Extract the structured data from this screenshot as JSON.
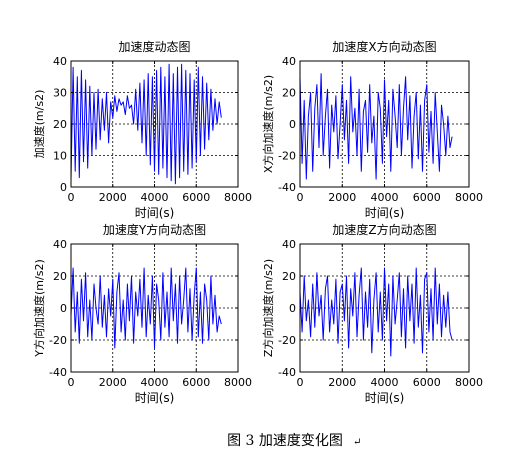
{
  "figure": {
    "caption": "图 3  加速度变化图",
    "caption_mark": "↵"
  },
  "colors": {
    "line": "#0000ff",
    "axes": "#000000",
    "grid": "#000000",
    "background": "#ffffff"
  },
  "chart_data": [
    {
      "type": "line",
      "title": "加速度动态图",
      "xlabel": "时间(s)",
      "ylabel": "加速度(m/s2)",
      "xlim": [
        0,
        8000
      ],
      "ylim": [
        0,
        40
      ],
      "xticks": [
        0,
        2000,
        4000,
        6000,
        8000
      ],
      "yticks": [
        0,
        10,
        20,
        30,
        40
      ],
      "grid": true,
      "series": [
        {
          "x": [
            0,
            100,
            200,
            300,
            400,
            500,
            600,
            700,
            800,
            900,
            1000,
            1100,
            1200,
            1300,
            1400,
            1500,
            1600,
            1700,
            1800,
            1900,
            2000,
            2100,
            2200,
            2300,
            2400,
            2500,
            2600,
            2700,
            2800,
            2900,
            3000,
            3100,
            3200,
            3300,
            3400,
            3500,
            3600,
            3700,
            3800,
            3900,
            4000,
            4100,
            4200,
            4300,
            4400,
            4500,
            4600,
            4700,
            4800,
            4900,
            5000,
            5100,
            5200,
            5300,
            5400,
            5500,
            5600,
            5700,
            5800,
            5900,
            6000,
            6100,
            6200,
            6300,
            6400,
            6500,
            6600,
            6700,
            6800,
            6900,
            7000,
            7100,
            7200
          ],
          "y": [
            2,
            38,
            5,
            35,
            3,
            37,
            8,
            34,
            6,
            32,
            10,
            30,
            12,
            31,
            15,
            28,
            18,
            30,
            14,
            27,
            22,
            29,
            24,
            28,
            26,
            27,
            23,
            29,
            25,
            26,
            20,
            31,
            18,
            33,
            14,
            34,
            10,
            36,
            7,
            35,
            5,
            37,
            4,
            38,
            6,
            35,
            3,
            39,
            2,
            36,
            1,
            38,
            3,
            39,
            5,
            37,
            4,
            36,
            6,
            34,
            8,
            38,
            10,
            35,
            12,
            33,
            15,
            31,
            18,
            28,
            20,
            27,
            22
          ]
        }
      ]
    },
    {
      "type": "line",
      "title": "加速度X方向动态图",
      "xlabel": "时间(s)",
      "ylabel": "X方向加速度(m/s2)",
      "xlim": [
        0,
        8000
      ],
      "ylim": [
        -40,
        40
      ],
      "xticks": [
        0,
        2000,
        4000,
        6000,
        8000
      ],
      "yticks": [
        -40,
        -20,
        0,
        20,
        40
      ],
      "grid": true,
      "series": [
        {
          "x": [
            0,
            100,
            200,
            300,
            400,
            500,
            600,
            700,
            800,
            900,
            1000,
            1100,
            1200,
            1300,
            1400,
            1500,
            1600,
            1700,
            1800,
            1900,
            2000,
            2100,
            2200,
            2300,
            2400,
            2500,
            2600,
            2700,
            2800,
            2900,
            3000,
            3100,
            3200,
            3300,
            3400,
            3500,
            3600,
            3700,
            3800,
            3900,
            4000,
            4100,
            4200,
            4300,
            4400,
            4500,
            4600,
            4700,
            4800,
            4900,
            5000,
            5100,
            5200,
            5300,
            5400,
            5500,
            5600,
            5700,
            5800,
            5900,
            6000,
            6100,
            6200,
            6300,
            6400,
            6500,
            6600,
            6700,
            6800,
            6900,
            7000,
            7100,
            7200
          ],
          "y": [
            30,
            -25,
            15,
            -35,
            5,
            20,
            -30,
            10,
            25,
            -15,
            32,
            -20,
            5,
            22,
            -28,
            12,
            -5,
            18,
            -22,
            0,
            25,
            -10,
            15,
            -25,
            30,
            -5,
            10,
            -20,
            22,
            -30,
            8,
            15,
            -18,
            25,
            -12,
            5,
            -35,
            20,
            10,
            -25,
            28,
            -8,
            15,
            -30,
            22,
            5,
            -15,
            25,
            -20,
            10,
            30,
            -10,
            18,
            -28,
            5,
            20,
            -22,
            12,
            -30,
            15,
            25,
            -18,
            8,
            -25,
            20,
            -5,
            -30,
            12,
            0,
            -20,
            5,
            -15,
            -8
          ]
        }
      ]
    },
    {
      "type": "line",
      "title": "加速度Y方向动态图",
      "xlabel": "时间(s)",
      "ylabel": "Y方向加速度(m/s2)",
      "xlim": [
        0,
        8000
      ],
      "ylim": [
        -40,
        40
      ],
      "xticks": [
        0,
        2000,
        4000,
        6000,
        8000
      ],
      "yticks": [
        -40,
        -20,
        0,
        20,
        40
      ],
      "grid": true,
      "series": [
        {
          "x": [
            0,
            100,
            200,
            300,
            400,
            500,
            600,
            700,
            800,
            900,
            1000,
            1100,
            1200,
            1300,
            1400,
            1500,
            1600,
            1700,
            1800,
            1900,
            2000,
            2100,
            2200,
            2300,
            2400,
            2500,
            2600,
            2700,
            2800,
            2900,
            3000,
            3100,
            3200,
            3300,
            3400,
            3500,
            3600,
            3700,
            3800,
            3900,
            4000,
            4100,
            4200,
            4300,
            4400,
            4500,
            4600,
            4700,
            4800,
            4900,
            5000,
            5100,
            5200,
            5300,
            5400,
            5500,
            5600,
            5700,
            5800,
            5900,
            6000,
            6100,
            6200,
            6300,
            6400,
            6500,
            6600,
            6700,
            6800,
            6900,
            7000,
            7100,
            7200
          ],
          "y": [
            -5,
            25,
            -15,
            10,
            -22,
            18,
            -8,
            22,
            -18,
            5,
            -20,
            15,
            0,
            -10,
            20,
            -12,
            8,
            -18,
            12,
            -5,
            18,
            -25,
            10,
            22,
            -15,
            5,
            -20,
            15,
            -8,
            20,
            -22,
            10,
            -5,
            18,
            -12,
            25,
            -18,
            8,
            -10,
            20,
            -25,
            15,
            5,
            -20,
            22,
            -12,
            10,
            -18,
            25,
            -8,
            15,
            -22,
            20,
            -10,
            5,
            25,
            -15,
            12,
            -20,
            8,
            25,
            -18,
            10,
            -22,
            15,
            5,
            -20,
            20,
            -10,
            8,
            -15,
            -5,
            -10
          ]
        }
      ]
    },
    {
      "type": "line",
      "title": "加速度Z方向动态图",
      "xlabel": "时间(s)",
      "ylabel": "Z方向加速度(m/s2)",
      "xlim": [
        0,
        8000
      ],
      "ylim": [
        -40,
        40
      ],
      "xticks": [
        0,
        2000,
        4000,
        6000,
        8000
      ],
      "yticks": [
        -40,
        -20,
        0,
        20,
        40
      ],
      "grid": true,
      "series": [
        {
          "x": [
            0,
            100,
            200,
            300,
            400,
            500,
            600,
            700,
            800,
            900,
            1000,
            1100,
            1200,
            1300,
            1400,
            1500,
            1600,
            1700,
            1800,
            1900,
            2000,
            2100,
            2200,
            2300,
            2400,
            2500,
            2600,
            2700,
            2800,
            2900,
            3000,
            3100,
            3200,
            3300,
            3400,
            3500,
            3600,
            3700,
            3800,
            3900,
            4000,
            4100,
            4200,
            4300,
            4400,
            4500,
            4600,
            4700,
            4800,
            4900,
            5000,
            5100,
            5200,
            5300,
            5400,
            5500,
            5600,
            5700,
            5800,
            5900,
            6000,
            6100,
            6200,
            6300,
            6400,
            6500,
            6600,
            6700,
            6800,
            6900,
            7000,
            7100,
            7200
          ],
          "y": [
            10,
            -15,
            20,
            -8,
            5,
            -18,
            15,
            -12,
            22,
            -5,
            8,
            -20,
            12,
            20,
            -15,
            5,
            -10,
            18,
            -22,
            10,
            15,
            -8,
            20,
            -25,
            12,
            -5,
            22,
            -18,
            8,
            25,
            -20,
            10,
            -12,
            18,
            -28,
            5,
            22,
            -15,
            10,
            -20,
            25,
            -8,
            15,
            -30,
            20,
            -10,
            5,
            22,
            -18,
            12,
            -25,
            20,
            -8,
            15,
            -22,
            25,
            -12,
            8,
            -28,
            18,
            22,
            -15,
            12,
            -20,
            25,
            -10,
            15,
            -18,
            8,
            -12,
            10,
            -15,
            -20
          ]
        }
      ]
    }
  ]
}
